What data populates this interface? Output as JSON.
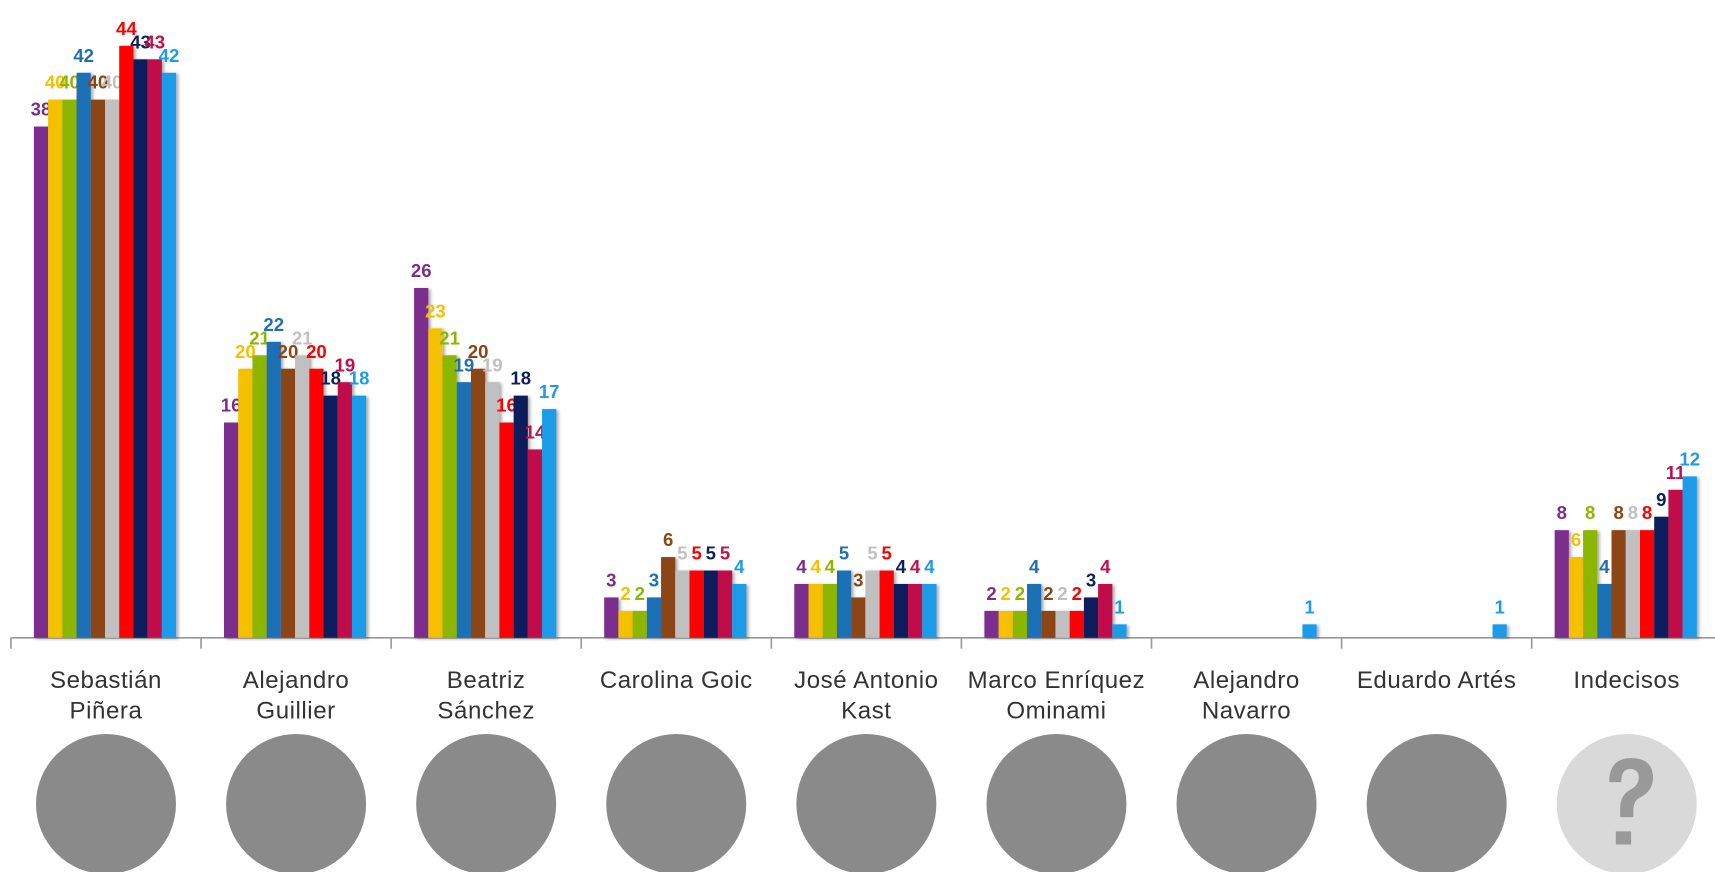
{
  "chart_data": {
    "type": "bar",
    "categories": [
      "Sebastián Piñera",
      "Alejandro Guillier",
      "Beatriz Sánchez",
      "Carolina Goic",
      "José Antonio Kast",
      "Marco Enríquez Ominami",
      "Alejandro Navarro",
      "Eduardo Artés",
      "Indecisos"
    ],
    "series": [
      {
        "color": "#7b2d8e",
        "values": [
          38,
          16,
          26,
          3,
          4,
          2,
          null,
          null,
          8
        ]
      },
      {
        "color": "#f5c000",
        "values": [
          40,
          20,
          23,
          2,
          4,
          2,
          null,
          null,
          6
        ]
      },
      {
        "color": "#8db600",
        "values": [
          40,
          21,
          21,
          2,
          4,
          2,
          null,
          null,
          8
        ]
      },
      {
        "color": "#1f6fb5",
        "values": [
          42,
          22,
          19,
          3,
          5,
          4,
          null,
          null,
          4
        ]
      },
      {
        "color": "#8b4513",
        "values": [
          40,
          20,
          20,
          6,
          3,
          2,
          null,
          null,
          8
        ]
      },
      {
        "color": "#c0c0c0",
        "values": [
          40,
          21,
          19,
          5,
          5,
          2,
          null,
          null,
          8
        ]
      },
      {
        "color": "#ff0000",
        "values": [
          44,
          20,
          16,
          5,
          5,
          2,
          null,
          null,
          8
        ]
      },
      {
        "color": "#0d1f5c",
        "values": [
          43,
          18,
          18,
          5,
          4,
          3,
          null,
          null,
          9
        ]
      },
      {
        "color": "#c0104a",
        "values": [
          43,
          19,
          14,
          5,
          4,
          4,
          null,
          null,
          11
        ]
      },
      {
        "color": "#1e9be8",
        "values": [
          42,
          18,
          17,
          4,
          4,
          1,
          1,
          1,
          12
        ]
      }
    ]
  }
}
